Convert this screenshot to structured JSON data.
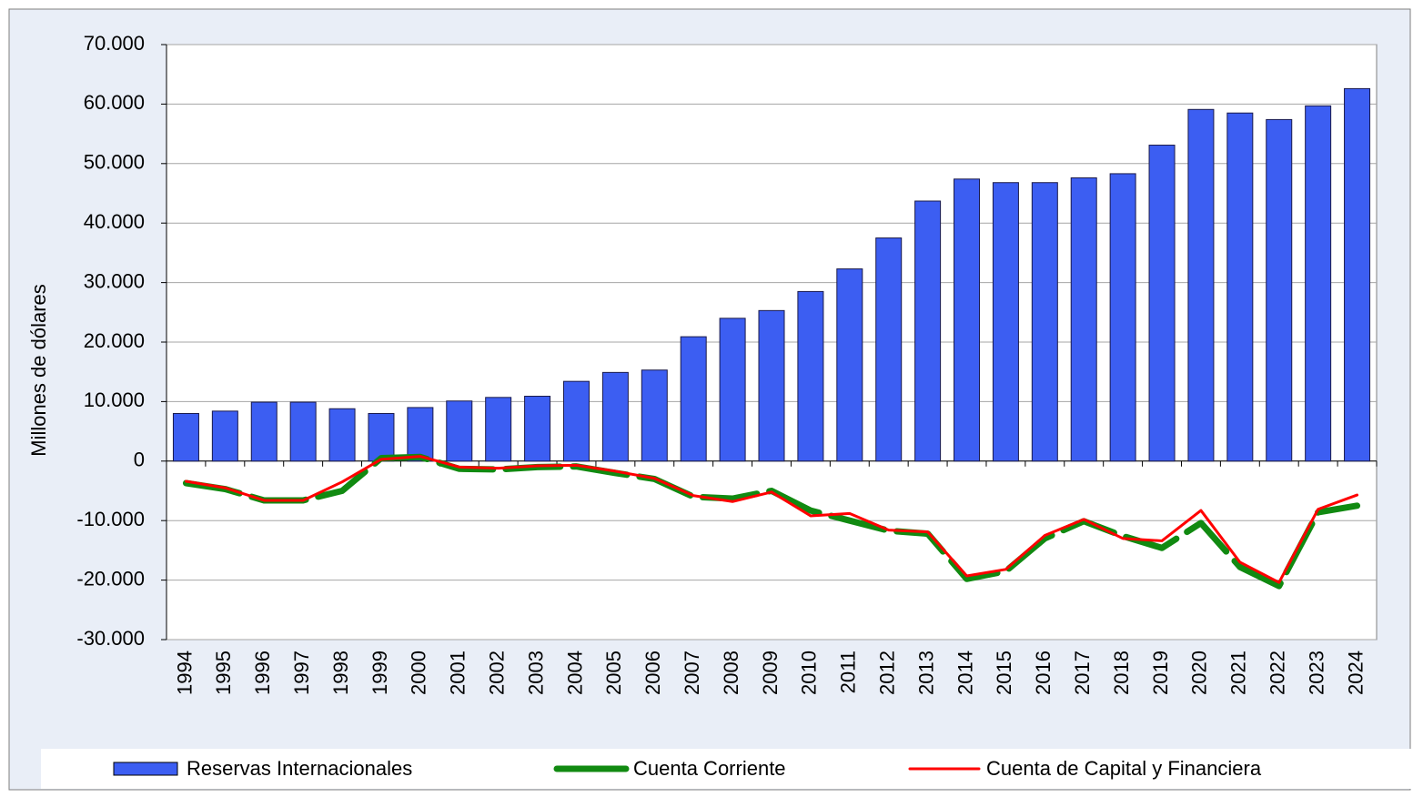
{
  "chart_data": {
    "type": "bar",
    "ylabel": "Millones de dólares",
    "categories": [
      "1994",
      "1995",
      "1996",
      "1997",
      "1998",
      "1999",
      "2000",
      "2001",
      "2002",
      "2003",
      "2004",
      "2005",
      "2006",
      "2007",
      "2008",
      "2009",
      "2010",
      "2011",
      "2012",
      "2013",
      "2014",
      "2015",
      "2016",
      "2017",
      "2018",
      "2019",
      "2020",
      "2021",
      "2022",
      "2023",
      "2024"
    ],
    "series": [
      {
        "name": "Reservas Internacionales",
        "type": "bar",
        "color": "#3c5ef2",
        "values": [
          8000,
          8400,
          9900,
          9900,
          8800,
          8000,
          9000,
          10100,
          10700,
          10900,
          13400,
          14900,
          15300,
          20900,
          24000,
          25300,
          28500,
          32300,
          37500,
          43700,
          47400,
          46800,
          46800,
          47600,
          48300,
          53100,
          59100,
          58500,
          57400,
          59700,
          62600
        ]
      },
      {
        "name": "Cuenta Corriente",
        "type": "line",
        "color": "#118a11",
        "values": [
          -3700,
          -4700,
          -6600,
          -6600,
          -5000,
          500,
          700,
          -1300,
          -1400,
          -1000,
          -900,
          -2000,
          -3000,
          -6000,
          -6300,
          -5000,
          -8300,
          -10000,
          -11700,
          -12200,
          -19800,
          -18500,
          -13000,
          -10100,
          -12600,
          -14600,
          -10400,
          -17800,
          -21000,
          -8600,
          -7500
        ]
      },
      {
        "name": "Cuenta de Capital y Financiera",
        "type": "line",
        "color": "#ff0000",
        "values": [
          -3400,
          -4500,
          -6600,
          -6600,
          -3500,
          300,
          800,
          -1000,
          -1200,
          -800,
          -700,
          -1700,
          -2900,
          -5800,
          -6800,
          -5200,
          -9200,
          -8800,
          -11600,
          -11900,
          -19300,
          -18200,
          -12500,
          -9800,
          -13000,
          -13400,
          -8300,
          -17000,
          -20400,
          -8100,
          -5700
        ]
      }
    ],
    "ylim": [
      -30000,
      70000
    ],
    "yticks": [
      {
        "value": -30000,
        "label": "-30.000"
      },
      {
        "value": -20000,
        "label": "-20.000"
      },
      {
        "value": -10000,
        "label": "-10.000"
      },
      0,
      {
        "value": 10000,
        "label": "10.000"
      },
      {
        "value": 20000,
        "label": "20.000"
      },
      {
        "value": 30000,
        "label": "30.000"
      },
      {
        "value": 40000,
        "label": "40.000"
      },
      {
        "value": 50000,
        "label": "50.000"
      },
      {
        "value": 60000,
        "label": "60.000"
      },
      {
        "value": 70000,
        "label": "70.000"
      }
    ],
    "grid": true,
    "legend": "bottom"
  }
}
